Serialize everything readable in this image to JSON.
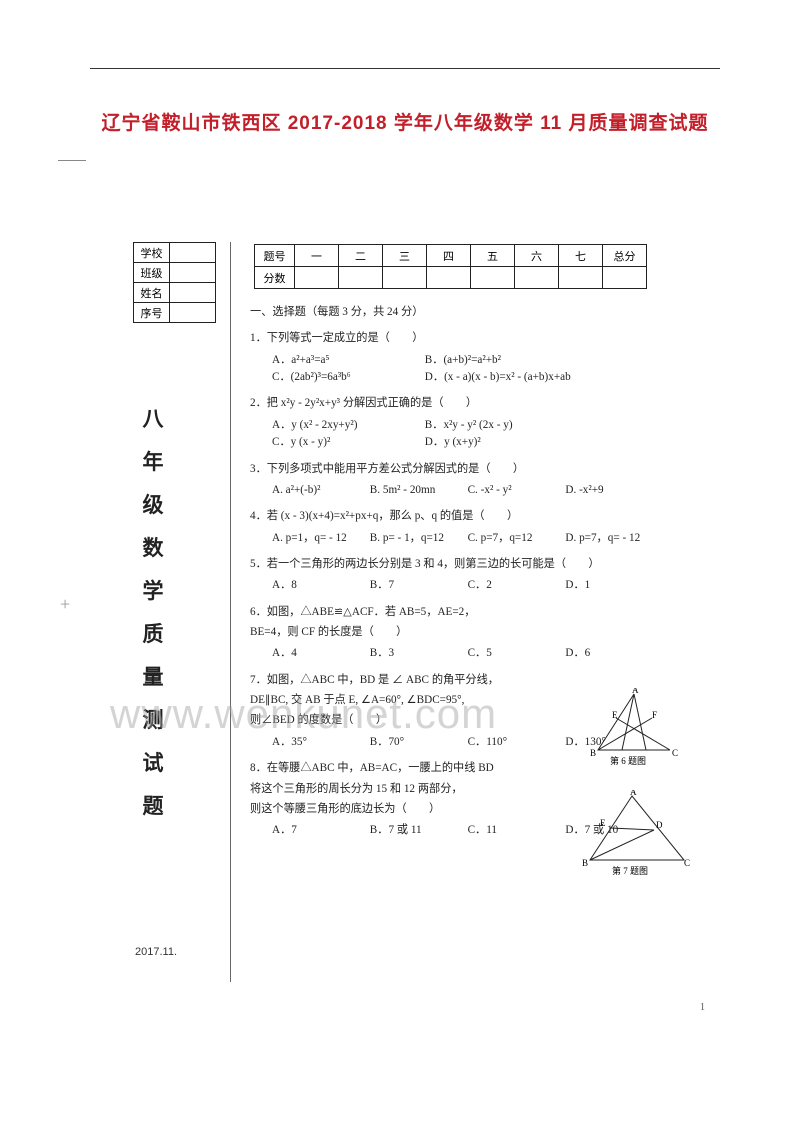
{
  "colors": {
    "title": "#c21f2a",
    "text": "#222222",
    "rule": "#333333",
    "watermark": "rgba(160,160,160,0.45)",
    "background": "#ffffff"
  },
  "title": "辽宁省鞍山市铁西区 2017-2018 学年八年级数学 11 月质量调查试题",
  "info_labels": [
    "学校",
    "班级",
    "姓名",
    "序号"
  ],
  "vertical_title": "八年级数学质量测试题",
  "date": "2017.11.",
  "score_header": {
    "label": "题号",
    "cols": [
      "一",
      "二",
      "三",
      "四",
      "五",
      "六",
      "七",
      "总分"
    ]
  },
  "score_row_label": "分数",
  "section1": "一、选择题（每题 3 分，共 24 分）",
  "q1": {
    "text": "1．下列等式一定成立的是（　　）",
    "opts": [
      "A．a²+a³=a⁵",
      "B．(a+b)²=a²+b²",
      "C．(2ab²)³=6a³b⁶",
      "D．(x - a)(x - b)=x² - (a+b)x+ab"
    ]
  },
  "q2": {
    "text": "2．把 x²y - 2y²x+y³ 分解因式正确的是（　　）",
    "opts": [
      "A．y (x² - 2xy+y²)",
      "B．x²y - y² (2x - y)",
      "C．y (x - y)²",
      "D．y (x+y)²"
    ]
  },
  "q3": {
    "text": "3．下列多项式中能用平方差公式分解因式的是（　　）",
    "opts": [
      "A. a²+(-b)²",
      "B. 5m² - 20mn",
      "C. -x² - y²",
      "D. -x²+9"
    ]
  },
  "q4": {
    "text": "4．若 (x - 3)(x+4)=x²+px+q，那么 p、q 的值是（　　）",
    "opts": [
      "A. p=1，q= - 12",
      "B. p= - 1，q=12",
      "C. p=7，q=12",
      "D. p=7，q= - 12"
    ]
  },
  "q5": {
    "text": "5．若一个三角形的两边长分别是 3 和 4，则第三边的长可能是（　　）",
    "opts": [
      "A．8",
      "B．7",
      "C．2",
      "D．1"
    ]
  },
  "q6": {
    "l1": "6．如图，△ABE≌△ACF．若 AB=5，AE=2，",
    "l2": "BE=4，则 CF 的长度是（　　）",
    "opts": [
      "A．4",
      "B．3",
      "C．5",
      "D．6"
    ],
    "caption": "第 6 题图"
  },
  "q7": {
    "l1": "7．如图，△ABC 中，BD 是 ∠ ABC 的角平分线，",
    "l2": "DE∥BC, 交 AB 于点 E, ∠A=60°, ∠BDC=95°,",
    "l3": "则∠BED 的度数是（　　）",
    "opts": [
      "A．35°",
      "B．70°",
      "C．110°",
      "D．130°"
    ],
    "caption": "第 7 题图"
  },
  "q8": {
    "l1": "8．在等腰△ABC 中，AB=AC，一腰上的中线 BD",
    "l2": "将这个三角形的周长分为 15 和 12 两部分，",
    "l3": "则这个等腰三角形的底边长为（　　）",
    "opts": [
      "A．7",
      "B．7 或 11",
      "C．11",
      "D．7 或 10"
    ]
  },
  "page_number": "1",
  "watermark": "www.wenkunet.com",
  "fonts": {
    "title_size": 19,
    "body_size": 11.2,
    "vertical_size": 21
  }
}
